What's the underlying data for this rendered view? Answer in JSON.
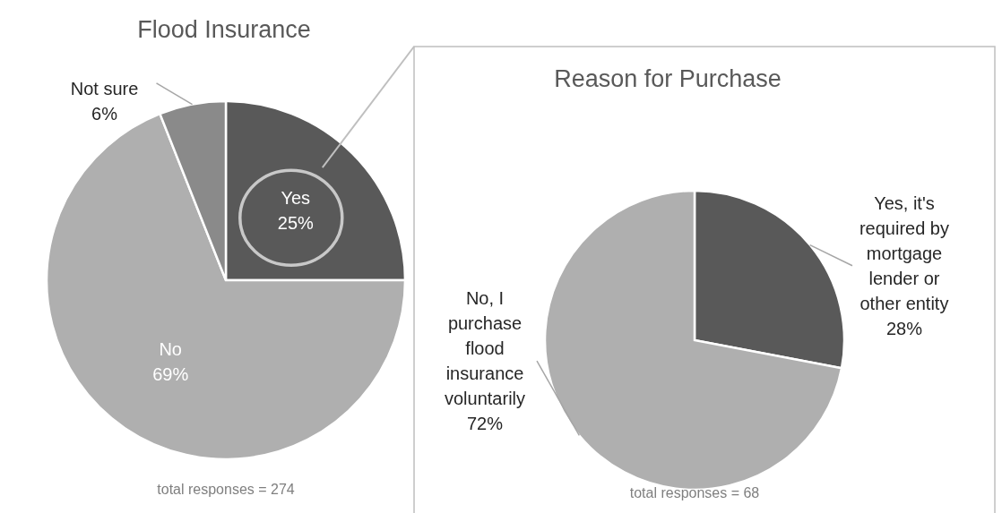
{
  "chart_data": [
    {
      "type": "pie",
      "title": "Flood Insurance",
      "categories": [
        "Yes",
        "No",
        "Not sure"
      ],
      "values": [
        25,
        69,
        6
      ],
      "colors": [
        "#595959",
        "#afafaf",
        "#8a8a8a"
      ],
      "value_labels": [
        "25%",
        "69%",
        "6%"
      ],
      "annotations": [
        "total responses = 274"
      ]
    },
    {
      "type": "pie",
      "title": "Reason for Purchase",
      "categories": [
        "Yes, it's required by mortgage lender or other entity",
        "No, I purchase flood insurance voluntarily"
      ],
      "values": [
        28,
        72
      ],
      "colors": [
        "#595959",
        "#afafaf"
      ],
      "value_labels": [
        "28%",
        "72%"
      ],
      "annotations": [
        "total responses = 68"
      ]
    }
  ]
}
